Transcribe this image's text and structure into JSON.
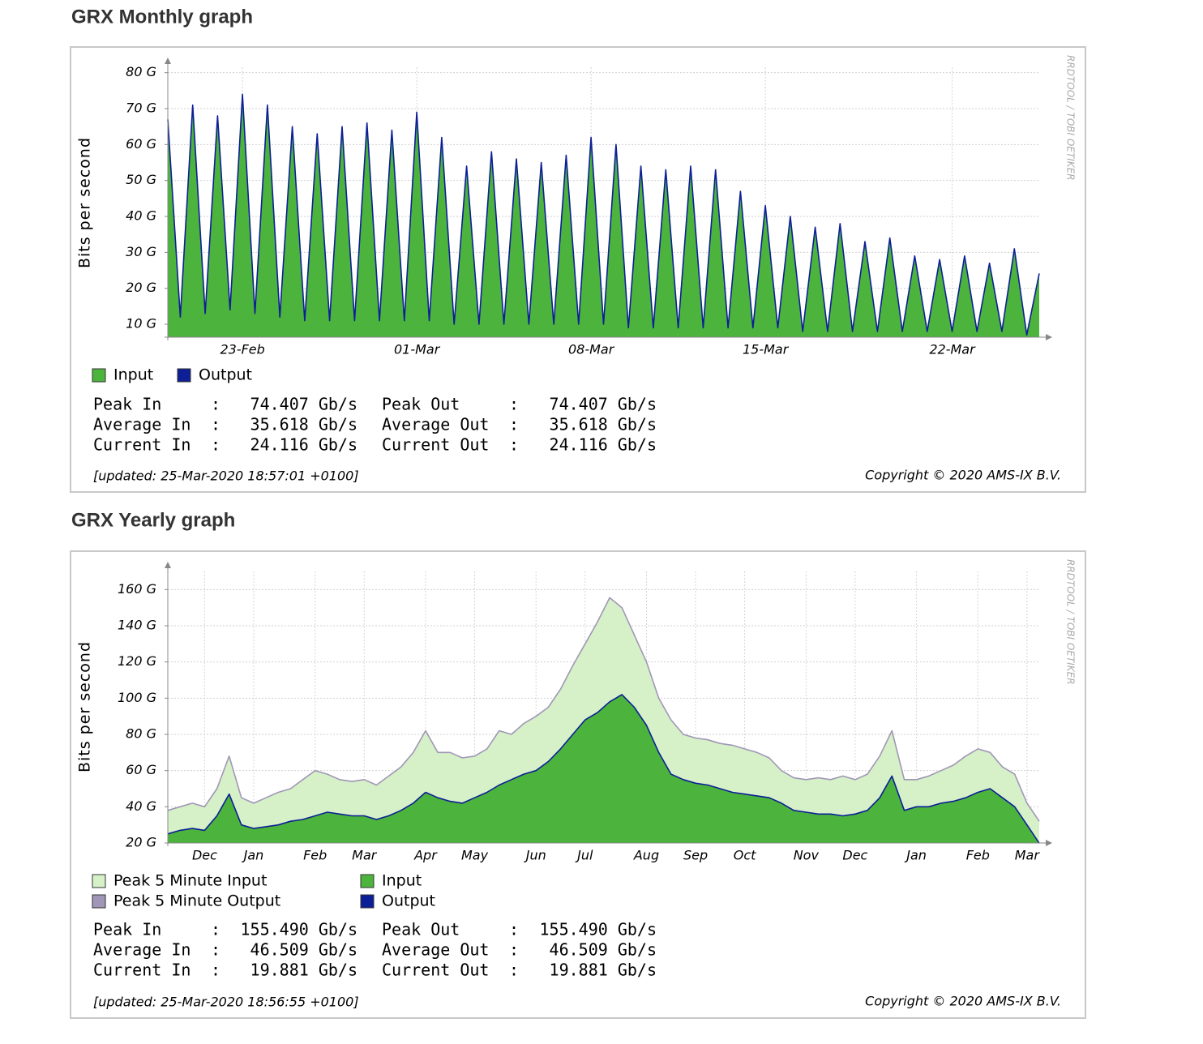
{
  "chart_data": [
    {
      "type": "area",
      "title": "GRX Monthly graph",
      "ylabel": "Bits per second",
      "watermark": "RRDTOOL / TOBI OETIKER",
      "categories": [
        null,
        null,
        null,
        null,
        null,
        null,
        "23-Feb",
        null,
        null,
        null,
        null,
        null,
        null,
        null,
        null,
        null,
        null,
        null,
        null,
        null,
        "01-Mar",
        null,
        null,
        null,
        null,
        null,
        null,
        null,
        null,
        null,
        null,
        null,
        null,
        null,
        "08-Mar",
        null,
        null,
        null,
        null,
        null,
        null,
        null,
        null,
        null,
        null,
        null,
        null,
        null,
        "15-Mar",
        null,
        null,
        null,
        null,
        null,
        null,
        null,
        null,
        null,
        null,
        null,
        null,
        null,
        null,
        "22-Mar",
        null,
        null,
        null,
        null,
        null,
        null,
        null
      ],
      "series": [
        {
          "name": "Input",
          "color": "#4cb33c",
          "style": "area",
          "values": [
            67,
            12,
            71,
            13,
            68,
            14,
            74,
            13,
            71,
            12,
            65,
            11,
            63,
            11,
            65,
            11,
            66,
            11,
            64,
            11,
            69,
            11,
            62,
            10,
            54,
            10,
            58,
            10,
            56,
            10,
            55,
            10,
            57,
            10,
            62,
            10,
            60,
            9,
            54,
            9,
            53,
            9,
            54,
            9,
            53,
            9,
            47,
            9,
            43,
            9,
            40,
            8,
            37,
            8,
            38,
            8,
            33,
            8,
            34,
            8,
            29,
            8,
            28,
            8,
            29,
            8,
            27,
            8,
            31,
            7,
            24.116
          ]
        },
        {
          "name": "Output",
          "color": "#0c1f96",
          "style": "line",
          "values": [
            67,
            12,
            71,
            13,
            68,
            14,
            74,
            13,
            71,
            12,
            65,
            11,
            63,
            11,
            65,
            11,
            66,
            11,
            64,
            11,
            69,
            11,
            62,
            10,
            54,
            10,
            58,
            10,
            56,
            10,
            55,
            10,
            57,
            10,
            62,
            10,
            60,
            9,
            54,
            9,
            53,
            9,
            54,
            9,
            53,
            9,
            47,
            9,
            43,
            9,
            40,
            8,
            37,
            8,
            38,
            8,
            33,
            8,
            34,
            8,
            29,
            8,
            28,
            8,
            29,
            8,
            27,
            8,
            31,
            7,
            24.116
          ]
        }
      ],
      "ylim": [
        6.4,
        81.5
      ],
      "yticks": [
        {
          "value": 10,
          "label": "10 G"
        },
        {
          "value": 20,
          "label": "20 G"
        },
        {
          "value": 30,
          "label": "30 G"
        },
        {
          "value": 40,
          "label": "40 G"
        },
        {
          "value": 50,
          "label": "50 G"
        },
        {
          "value": 60,
          "label": "60 G"
        },
        {
          "value": 70,
          "label": "70 G"
        },
        {
          "value": 80,
          "label": "80 G"
        }
      ],
      "grid": true,
      "stats": [
        [
          "Peak In",
          ":",
          "74.407 Gb/s",
          "Peak Out",
          ":",
          "74.407 Gb/s"
        ],
        [
          "Average In",
          ":",
          "35.618 Gb/s",
          "Average Out",
          ":",
          "35.618 Gb/s"
        ],
        [
          "Current In",
          ":",
          "24.116 Gb/s",
          "Current Out",
          ":",
          "24.116 Gb/s"
        ]
      ],
      "updated": "[updated: 25-Mar-2020 18:57:01 +0100]",
      "copyright": "Copyright © 2020 AMS-IX B.V."
    },
    {
      "type": "area",
      "title": "GRX Yearly graph",
      "ylabel": "Bits per second",
      "watermark": "RRDTOOL / TOBI OETIKER",
      "categories": [
        null,
        null,
        null,
        "Dec",
        null,
        null,
        null,
        "Jan",
        null,
        null,
        null,
        null,
        "Feb",
        null,
        null,
        null,
        "Mar",
        null,
        null,
        null,
        null,
        "Apr",
        null,
        null,
        null,
        "May",
        null,
        null,
        null,
        null,
        "Jun",
        null,
        null,
        null,
        "Jul",
        null,
        null,
        null,
        null,
        "Aug",
        null,
        null,
        null,
        "Sep",
        null,
        null,
        null,
        "Oct",
        null,
        null,
        null,
        null,
        "Nov",
        null,
        null,
        null,
        "Dec",
        null,
        null,
        null,
        null,
        "Jan",
        null,
        null,
        null,
        null,
        "Feb",
        null,
        null,
        null,
        "Mar",
        null
      ],
      "series": [
        {
          "name": "Peak 5 Minute Input",
          "color": "#d6f0c8",
          "style": "area",
          "values": [
            38,
            40,
            42,
            40,
            50,
            68,
            45,
            42,
            45,
            48,
            50,
            55,
            60,
            58,
            55,
            54,
            55,
            52,
            57,
            62,
            70,
            82,
            70,
            70,
            67,
            68,
            72,
            82,
            80,
            86,
            90,
            95,
            105,
            118,
            130,
            142,
            155.49,
            150,
            135,
            120,
            100,
            88,
            80,
            78,
            77,
            75,
            74,
            72,
            70,
            67,
            60,
            56,
            55,
            56,
            55,
            57,
            55,
            58,
            68,
            82,
            55,
            55,
            57,
            60,
            63,
            68,
            72,
            70,
            62,
            58,
            42,
            32
          ]
        },
        {
          "name": "Peak 5 Minute Output",
          "color": "#a097b6",
          "style": "line",
          "values": [
            38,
            40,
            42,
            40,
            50,
            68,
            45,
            42,
            45,
            48,
            50,
            55,
            60,
            58,
            55,
            54,
            55,
            52,
            57,
            62,
            70,
            82,
            70,
            70,
            67,
            68,
            72,
            82,
            80,
            86,
            90,
            95,
            105,
            118,
            130,
            142,
            155.49,
            150,
            135,
            120,
            100,
            88,
            80,
            78,
            77,
            75,
            74,
            72,
            70,
            67,
            60,
            56,
            55,
            56,
            55,
            57,
            55,
            58,
            68,
            82,
            55,
            55,
            57,
            60,
            63,
            68,
            72,
            70,
            62,
            58,
            42,
            32
          ]
        },
        {
          "name": "Input",
          "color": "#4cb33c",
          "style": "area",
          "values": [
            25,
            27,
            28,
            27,
            35,
            47,
            30,
            28,
            29,
            30,
            32,
            33,
            35,
            37,
            36,
            35,
            35,
            33,
            35,
            38,
            42,
            48,
            45,
            43,
            42,
            45,
            48,
            52,
            55,
            58,
            60,
            65,
            72,
            80,
            88,
            92,
            98,
            102,
            95,
            85,
            70,
            58,
            55,
            53,
            52,
            50,
            48,
            47,
            46,
            45,
            42,
            38,
            37,
            36,
            36,
            35,
            36,
            38,
            45,
            57,
            38,
            40,
            40,
            42,
            43,
            45,
            48,
            50,
            45,
            40,
            30,
            19.881
          ]
        },
        {
          "name": "Output",
          "color": "#0c1f96",
          "style": "line",
          "values": [
            25,
            27,
            28,
            27,
            35,
            47,
            30,
            28,
            29,
            30,
            32,
            33,
            35,
            37,
            36,
            35,
            35,
            33,
            35,
            38,
            42,
            48,
            45,
            43,
            42,
            45,
            48,
            52,
            55,
            58,
            60,
            65,
            72,
            80,
            88,
            92,
            98,
            102,
            95,
            85,
            70,
            58,
            55,
            53,
            52,
            50,
            48,
            47,
            46,
            45,
            42,
            38,
            37,
            36,
            36,
            35,
            36,
            38,
            45,
            57,
            38,
            40,
            40,
            42,
            43,
            45,
            48,
            50,
            45,
            40,
            30,
            19.881
          ]
        }
      ],
      "ylim": [
        20,
        170
      ],
      "yticks": [
        {
          "value": 20,
          "label": "20 G"
        },
        {
          "value": 40,
          "label": "40 G"
        },
        {
          "value": 60,
          "label": "60 G"
        },
        {
          "value": 80,
          "label": "80 G"
        },
        {
          "value": 100,
          "label": "100 G"
        },
        {
          "value": 120,
          "label": "120 G"
        },
        {
          "value": 140,
          "label": "140 G"
        },
        {
          "value": 160,
          "label": "160 G"
        }
      ],
      "grid": true,
      "stats": [
        [
          "Peak In",
          ":",
          "155.490 Gb/s",
          "Peak Out",
          ":",
          "155.490 Gb/s"
        ],
        [
          "Average In",
          ":",
          "46.509 Gb/s",
          "Average Out",
          ":",
          "46.509 Gb/s"
        ],
        [
          "Current In",
          ":",
          "19.881 Gb/s",
          "Current Out",
          ":",
          "19.881 Gb/s"
        ]
      ],
      "updated": "[updated: 25-Mar-2020 18:56:55 +0100]",
      "copyright": "Copyright © 2020 AMS-IX B.V."
    }
  ]
}
